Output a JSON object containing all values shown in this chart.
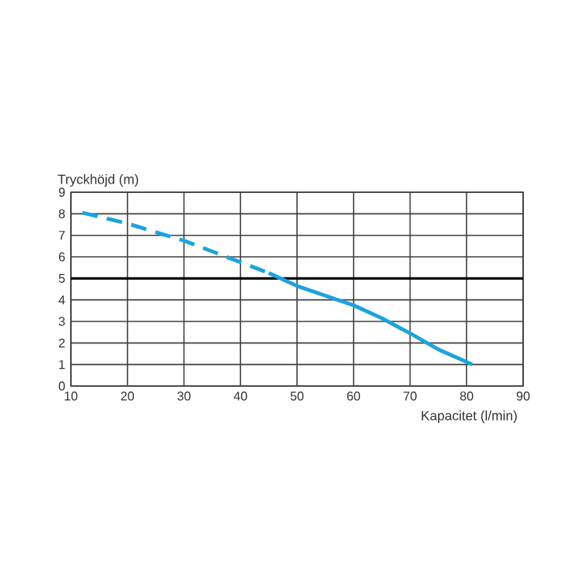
{
  "chart_data": {
    "type": "line",
    "xlabel": "Kapacitet (l/min)",
    "ylabel": "Tryckhöjd (m)",
    "xlim": [
      10,
      90
    ],
    "ylim": [
      0,
      9
    ],
    "xticks": [
      10,
      20,
      30,
      40,
      50,
      60,
      70,
      80,
      90
    ],
    "yticks": [
      0,
      1,
      2,
      3,
      4,
      5,
      6,
      7,
      8,
      9
    ],
    "grid": true,
    "marker": "none",
    "series": [
      {
        "color": "#1ba3e0",
        "line_style": "dashed",
        "x": [
          12,
          20,
          30,
          40,
          45
        ],
        "values": [
          8.05,
          7.55,
          6.75,
          5.75,
          5.25
        ]
      },
      {
        "color": "#1ba3e0",
        "line_style": "solid",
        "x": [
          45,
          50,
          55,
          60,
          65,
          70,
          75,
          81
        ],
        "values": [
          5.25,
          4.65,
          4.2,
          3.75,
          3.15,
          2.45,
          1.7,
          1.0
        ]
      }
    ],
    "ref_lines": [
      {
        "axis": "y",
        "value": 5,
        "color": "#000000"
      }
    ]
  }
}
